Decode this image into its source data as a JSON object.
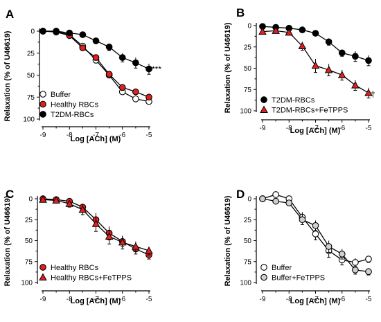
{
  "chart_data": [
    {
      "panel": "A",
      "type": "line",
      "xlabel": "Log [ACh] (M)",
      "ylabel": "Relaxation (% of U46619)",
      "xlim": [
        -9,
        -5
      ],
      "ylim": [
        0,
        100
      ],
      "y_inverted": true,
      "xticks": [
        "-9",
        "-8",
        "-7",
        "-6",
        "-5"
      ],
      "yticks": [
        "0",
        "25",
        "50",
        "75",
        "100"
      ],
      "legend_position": "bottom-left",
      "annotation": "***",
      "series": [
        {
          "name": "Buffer",
          "marker": "circle",
          "fill": "#ffffff",
          "x": [
            -9,
            -8.5,
            -8,
            -7.5,
            -7,
            -6.5,
            -6,
            -5.5,
            -5
          ],
          "y": [
            0,
            0,
            4,
            17,
            33,
            50,
            69,
            77,
            80
          ],
          "err": [
            1,
            1,
            2,
            3,
            3,
            3,
            3,
            3,
            3
          ]
        },
        {
          "name": "Healthy RBCs",
          "marker": "circle",
          "fill": "#e02020",
          "x": [
            -9,
            -8.5,
            -8,
            -7.5,
            -7,
            -6.5,
            -6,
            -5.5,
            -5
          ],
          "y": [
            0,
            1,
            5,
            19,
            30,
            49,
            64,
            69,
            75
          ],
          "err": [
            1,
            1,
            2,
            3,
            3,
            3,
            3,
            3,
            3
          ]
        },
        {
          "name": "T2DM-RBCs",
          "marker": "circle",
          "fill": "#000000",
          "x": [
            -9,
            -8.5,
            -8,
            -7.5,
            -7,
            -6.5,
            -6,
            -5.5,
            -5
          ],
          "y": [
            0,
            0,
            2,
            4,
            11,
            18,
            30,
            36,
            43
          ],
          "err": [
            1,
            1,
            1,
            2,
            3,
            4,
            5,
            6,
            6
          ]
        }
      ]
    },
    {
      "panel": "B",
      "type": "line",
      "xlabel": "Log [ACh] (M)",
      "ylabel": "Relaxation (% of U46619)",
      "xlim": [
        -9,
        -5
      ],
      "ylim": [
        0,
        100
      ],
      "y_inverted": true,
      "xticks": [
        "-9",
        "-8",
        "-7",
        "-6",
        "-5"
      ],
      "yticks": [
        "0",
        "25",
        "50",
        "75",
        "100"
      ],
      "legend_position": "bottom-left",
      "annotation": "†",
      "series": [
        {
          "name": "T2DM-RBCs",
          "marker": "circle",
          "fill": "#000000",
          "x": [
            -9,
            -8.5,
            -8,
            -7.5,
            -7,
            -6.5,
            -6,
            -5.5,
            -5
          ],
          "y": [
            1,
            2,
            3,
            5,
            9,
            19,
            32,
            36,
            41
          ],
          "err": [
            1,
            1,
            1,
            2,
            2,
            4,
            4,
            6,
            6
          ]
        },
        {
          "name": "T2DM-RBCs+FeTPPS",
          "marker": "triangle",
          "fill": "#e02020",
          "x": [
            -9,
            -8.5,
            -8,
            -7.5,
            -7,
            -6.5,
            -6,
            -5.5,
            -5
          ],
          "y": [
            7,
            6,
            8,
            24,
            47,
            52,
            58,
            70,
            79
          ],
          "err": [
            1,
            2,
            3,
            5,
            8,
            7,
            6,
            6,
            6
          ]
        }
      ]
    },
    {
      "panel": "C",
      "type": "line",
      "xlabel": "Log [ACh] (M)",
      "ylabel": "Relaxation (% of U46619)",
      "xlim": [
        -9,
        -5
      ],
      "ylim": [
        0,
        100
      ],
      "y_inverted": true,
      "xticks": [
        "-9",
        "-8",
        "-7",
        "-6",
        "-5"
      ],
      "yticks": [
        "0",
        "25",
        "50",
        "75",
        "100"
      ],
      "legend_position": "bottom-left",
      "annotation": "",
      "series": [
        {
          "name": "Healthy RBCs",
          "marker": "circle",
          "fill": "#e02020",
          "x": [
            -9,
            -8.5,
            -8,
            -7.5,
            -7,
            -6.5,
            -6,
            -5.5,
            -5
          ],
          "y": [
            0,
            1,
            3,
            10,
            25,
            41,
            51,
            60,
            67
          ],
          "err": [
            1,
            2,
            3,
            4,
            8,
            8,
            6,
            6,
            5
          ]
        },
        {
          "name": "Healthy RBCs+FeTPPS",
          "marker": "triangle",
          "fill": "#e02020",
          "x": [
            -9,
            -8.5,
            -8,
            -7.5,
            -7,
            -6.5,
            -6,
            -5.5,
            -5
          ],
          "y": [
            1,
            2,
            6,
            13,
            30,
            45,
            52,
            57,
            62
          ],
          "err": [
            1,
            2,
            4,
            6,
            9,
            9,
            8,
            6,
            5
          ]
        }
      ]
    },
    {
      "panel": "D",
      "type": "line",
      "xlabel": "Log [ACh] (M)",
      "ylabel": "Relaxation (% of U46619)",
      "xlim": [
        -9,
        -5
      ],
      "ylim": [
        0,
        100
      ],
      "y_inverted": true,
      "xticks": [
        "-9",
        "-8",
        "-7",
        "-6",
        "-5"
      ],
      "yticks": [
        "0",
        "25",
        "50",
        "75",
        "100"
      ],
      "legend_position": "bottom-left",
      "annotation": "",
      "series": [
        {
          "name": "Buffer",
          "marker": "circle",
          "fill": "#ffffff",
          "x": [
            -9,
            -8.5,
            -8,
            -7.5,
            -7,
            -6.5,
            -6,
            -5.5,
            -5
          ],
          "y": [
            0,
            -5,
            0,
            22,
            42,
            62,
            73,
            76,
            72
          ],
          "err": [
            1,
            2,
            2,
            6,
            7,
            8,
            6,
            5,
            4
          ]
        },
        {
          "name": "Buffer+FeTPPS",
          "marker": "circle",
          "fill": "#d0d0d0",
          "x": [
            -9,
            -8.5,
            -8,
            -7.5,
            -7,
            -6.5,
            -6,
            -5.5,
            -5
          ],
          "y": [
            0,
            3,
            5,
            25,
            32,
            57,
            66,
            85,
            87
          ],
          "err": [
            1,
            2,
            3,
            6,
            6,
            7,
            6,
            5,
            4
          ]
        }
      ]
    }
  ]
}
